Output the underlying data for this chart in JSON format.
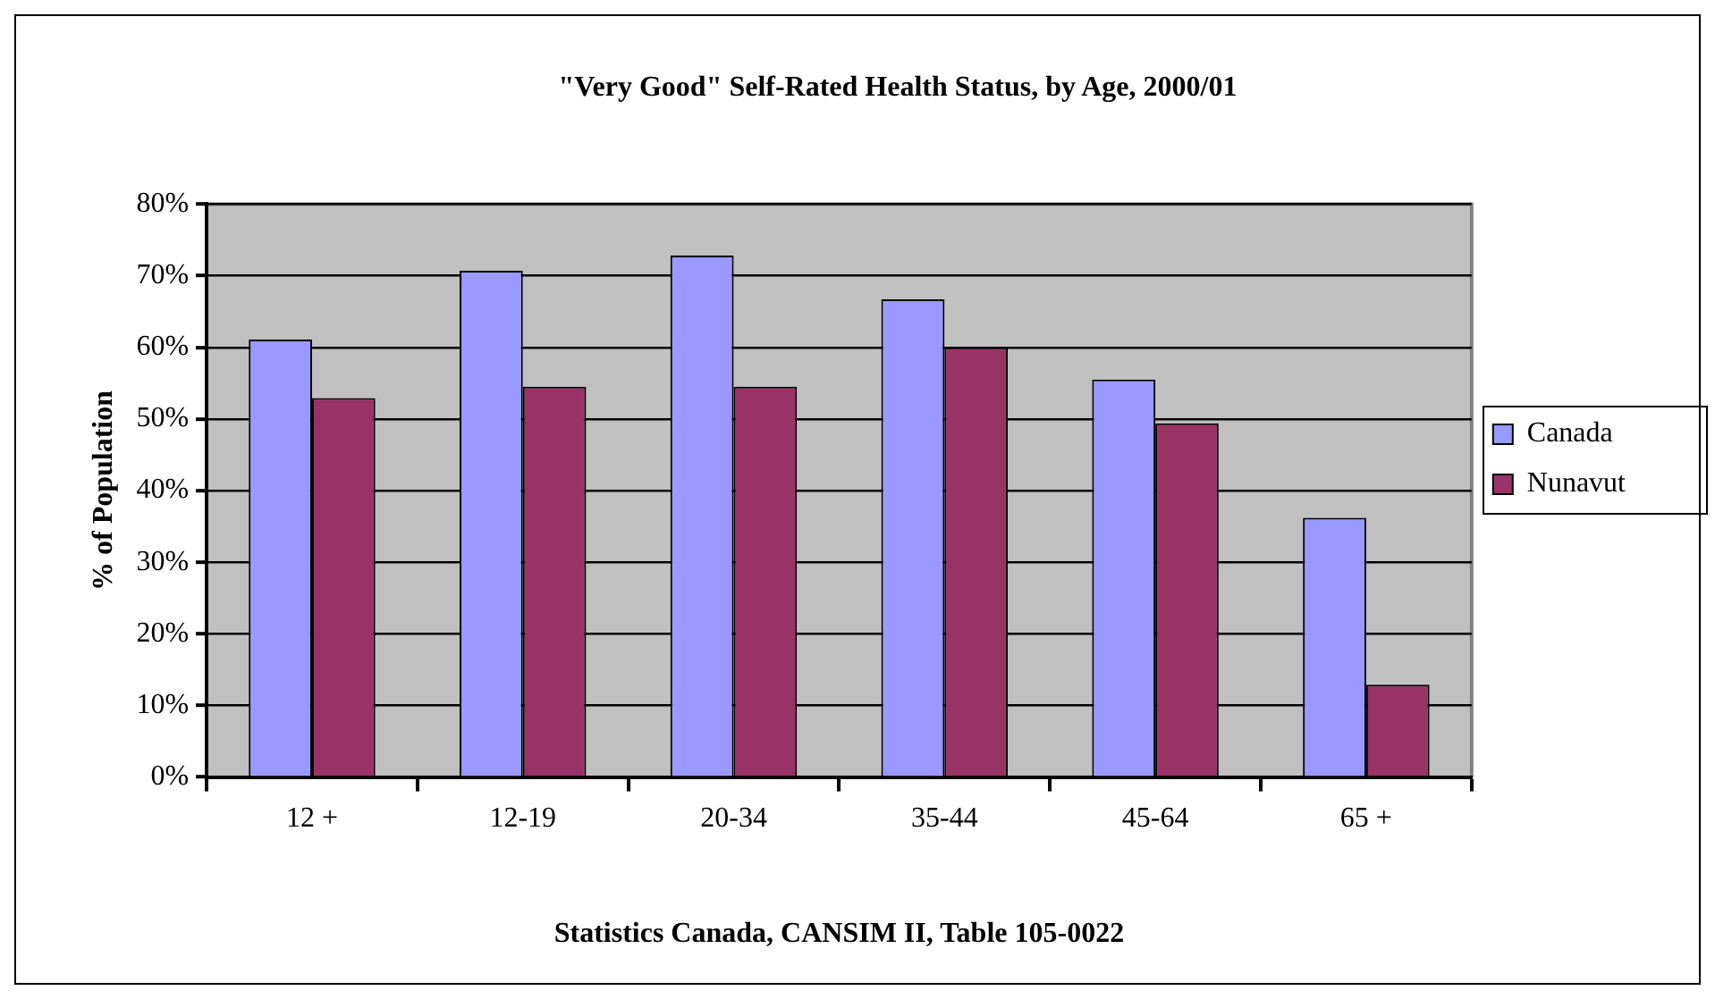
{
  "chart_data": {
    "type": "bar",
    "title": "\"Very Good\" Self-Rated Health Status, by Age, 2000/01",
    "ylabel": "% of Population",
    "annotations": [
      "Statistics Canada, CANSIM II, Table 105-0022"
    ],
    "categories": [
      "12 +",
      "12-19",
      "20-34",
      "35-44",
      "45-64",
      "65 +"
    ],
    "series": [
      {
        "name": "Canada",
        "color": "#9999ff",
        "values": [
          61.1,
          70.7,
          72.8,
          66.7,
          55.5,
          36.2
        ]
      },
      {
        "name": "Nunavut",
        "color": "#993366",
        "values": [
          52.9,
          54.5,
          54.5,
          60.0,
          49.4,
          12.9
        ]
      }
    ],
    "ylim": [
      0,
      80
    ],
    "yticks": [
      {
        "value": 0,
        "label": "0%"
      },
      {
        "value": 10,
        "label": "10%"
      },
      {
        "value": 20,
        "label": "20%"
      },
      {
        "value": 30,
        "label": "30%"
      },
      {
        "value": 40,
        "label": "40%"
      },
      {
        "value": 50,
        "label": "50%"
      },
      {
        "value": 60,
        "label": "60%"
      },
      {
        "value": 70,
        "label": "70%"
      },
      {
        "value": 80,
        "label": "80%"
      }
    ],
    "grid": "y",
    "legend": "right"
  }
}
